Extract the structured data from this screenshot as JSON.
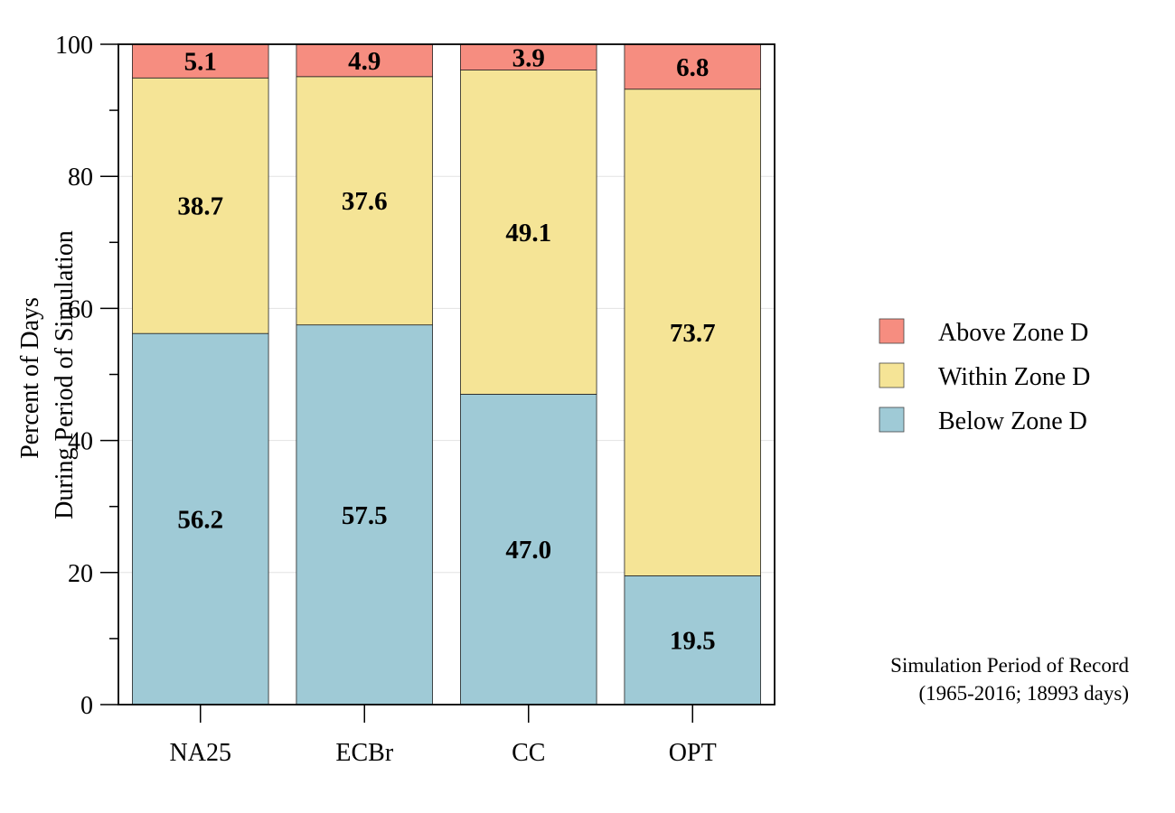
{
  "chart_data": {
    "type": "bar",
    "stacked": true,
    "categories": [
      "NA25",
      "ECBr",
      "CC",
      "OPT"
    ],
    "series": [
      {
        "name": "Below Zone D",
        "color": "#9FCAD6",
        "values": [
          56.2,
          57.5,
          47.0,
          19.5
        ]
      },
      {
        "name": "Within Zone D",
        "color": "#F5E496",
        "values": [
          38.7,
          37.6,
          49.1,
          73.7
        ]
      },
      {
        "name": "Above Zone D",
        "color": "#F68D80",
        "values": [
          5.1,
          4.9,
          3.9,
          6.8
        ]
      }
    ],
    "legend_order": [
      2,
      1,
      0
    ],
    "ylabel": [
      "Percent of Days",
      "During Period of Simulation"
    ],
    "ylim": [
      0,
      100
    ],
    "yticks": [
      0,
      20,
      40,
      60,
      80,
      100
    ],
    "grid": true,
    "legend_position": "right"
  },
  "note": {
    "line1": "Simulation Period of Record",
    "line2": "(1965-2016; 18993 days)"
  }
}
